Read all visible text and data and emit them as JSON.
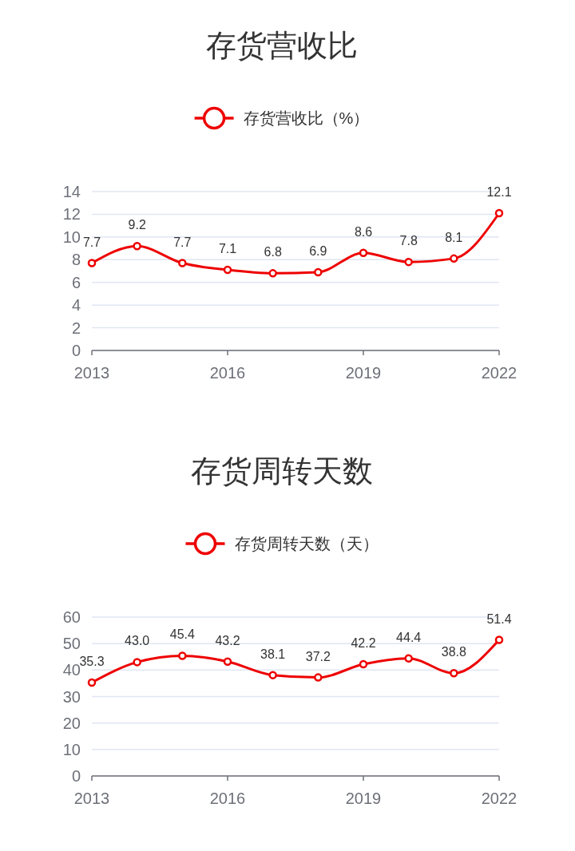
{
  "chart_data": [
    {
      "type": "line",
      "title": "存货营收比",
      "x": [
        2013,
        2014,
        2015,
        2016,
        2017,
        2018,
        2019,
        2020,
        2021,
        2022
      ],
      "xlim": [
        2013,
        2022
      ],
      "xticks": [
        2013,
        2016,
        2019,
        2022
      ],
      "ylim": [
        0,
        14
      ],
      "yticks": [
        0,
        2,
        4,
        6,
        8,
        10,
        12,
        14
      ],
      "grid": "y",
      "legend": "top",
      "marker": "circle",
      "line_style": "solid",
      "data_labels": true,
      "series": [
        {
          "name": "存货营收比（%）",
          "color": "#ee0000",
          "values": [
            7.7,
            9.2,
            7.7,
            7.1,
            6.8,
            6.9,
            8.6,
            7.8,
            8.1,
            12.1
          ]
        }
      ]
    },
    {
      "type": "line",
      "title": "存货周转天数",
      "x": [
        2013,
        2014,
        2015,
        2016,
        2017,
        2018,
        2019,
        2020,
        2021,
        2022
      ],
      "xlim": [
        2013,
        2022
      ],
      "xticks": [
        2013,
        2016,
        2019,
        2022
      ],
      "ylim": [
        0,
        60
      ],
      "yticks": [
        0,
        10,
        20,
        30,
        40,
        50,
        60
      ],
      "grid": "y",
      "legend": "top",
      "marker": "circle",
      "line_style": "solid",
      "series": [
        {
          "name": "存货周转天数（天）",
          "color": "#ee0000",
          "values": [
            35.3,
            43.0,
            45.4,
            43.2,
            38.1,
            37.2,
            42.2,
            44.4,
            38.8,
            51.4
          ],
          "value_labels": [
            "35.3",
            "43.0",
            "45.4",
            "43.2",
            "38.1",
            "37.2",
            "42.2",
            "44.4",
            "38.8",
            "51.4"
          ]
        }
      ]
    }
  ]
}
